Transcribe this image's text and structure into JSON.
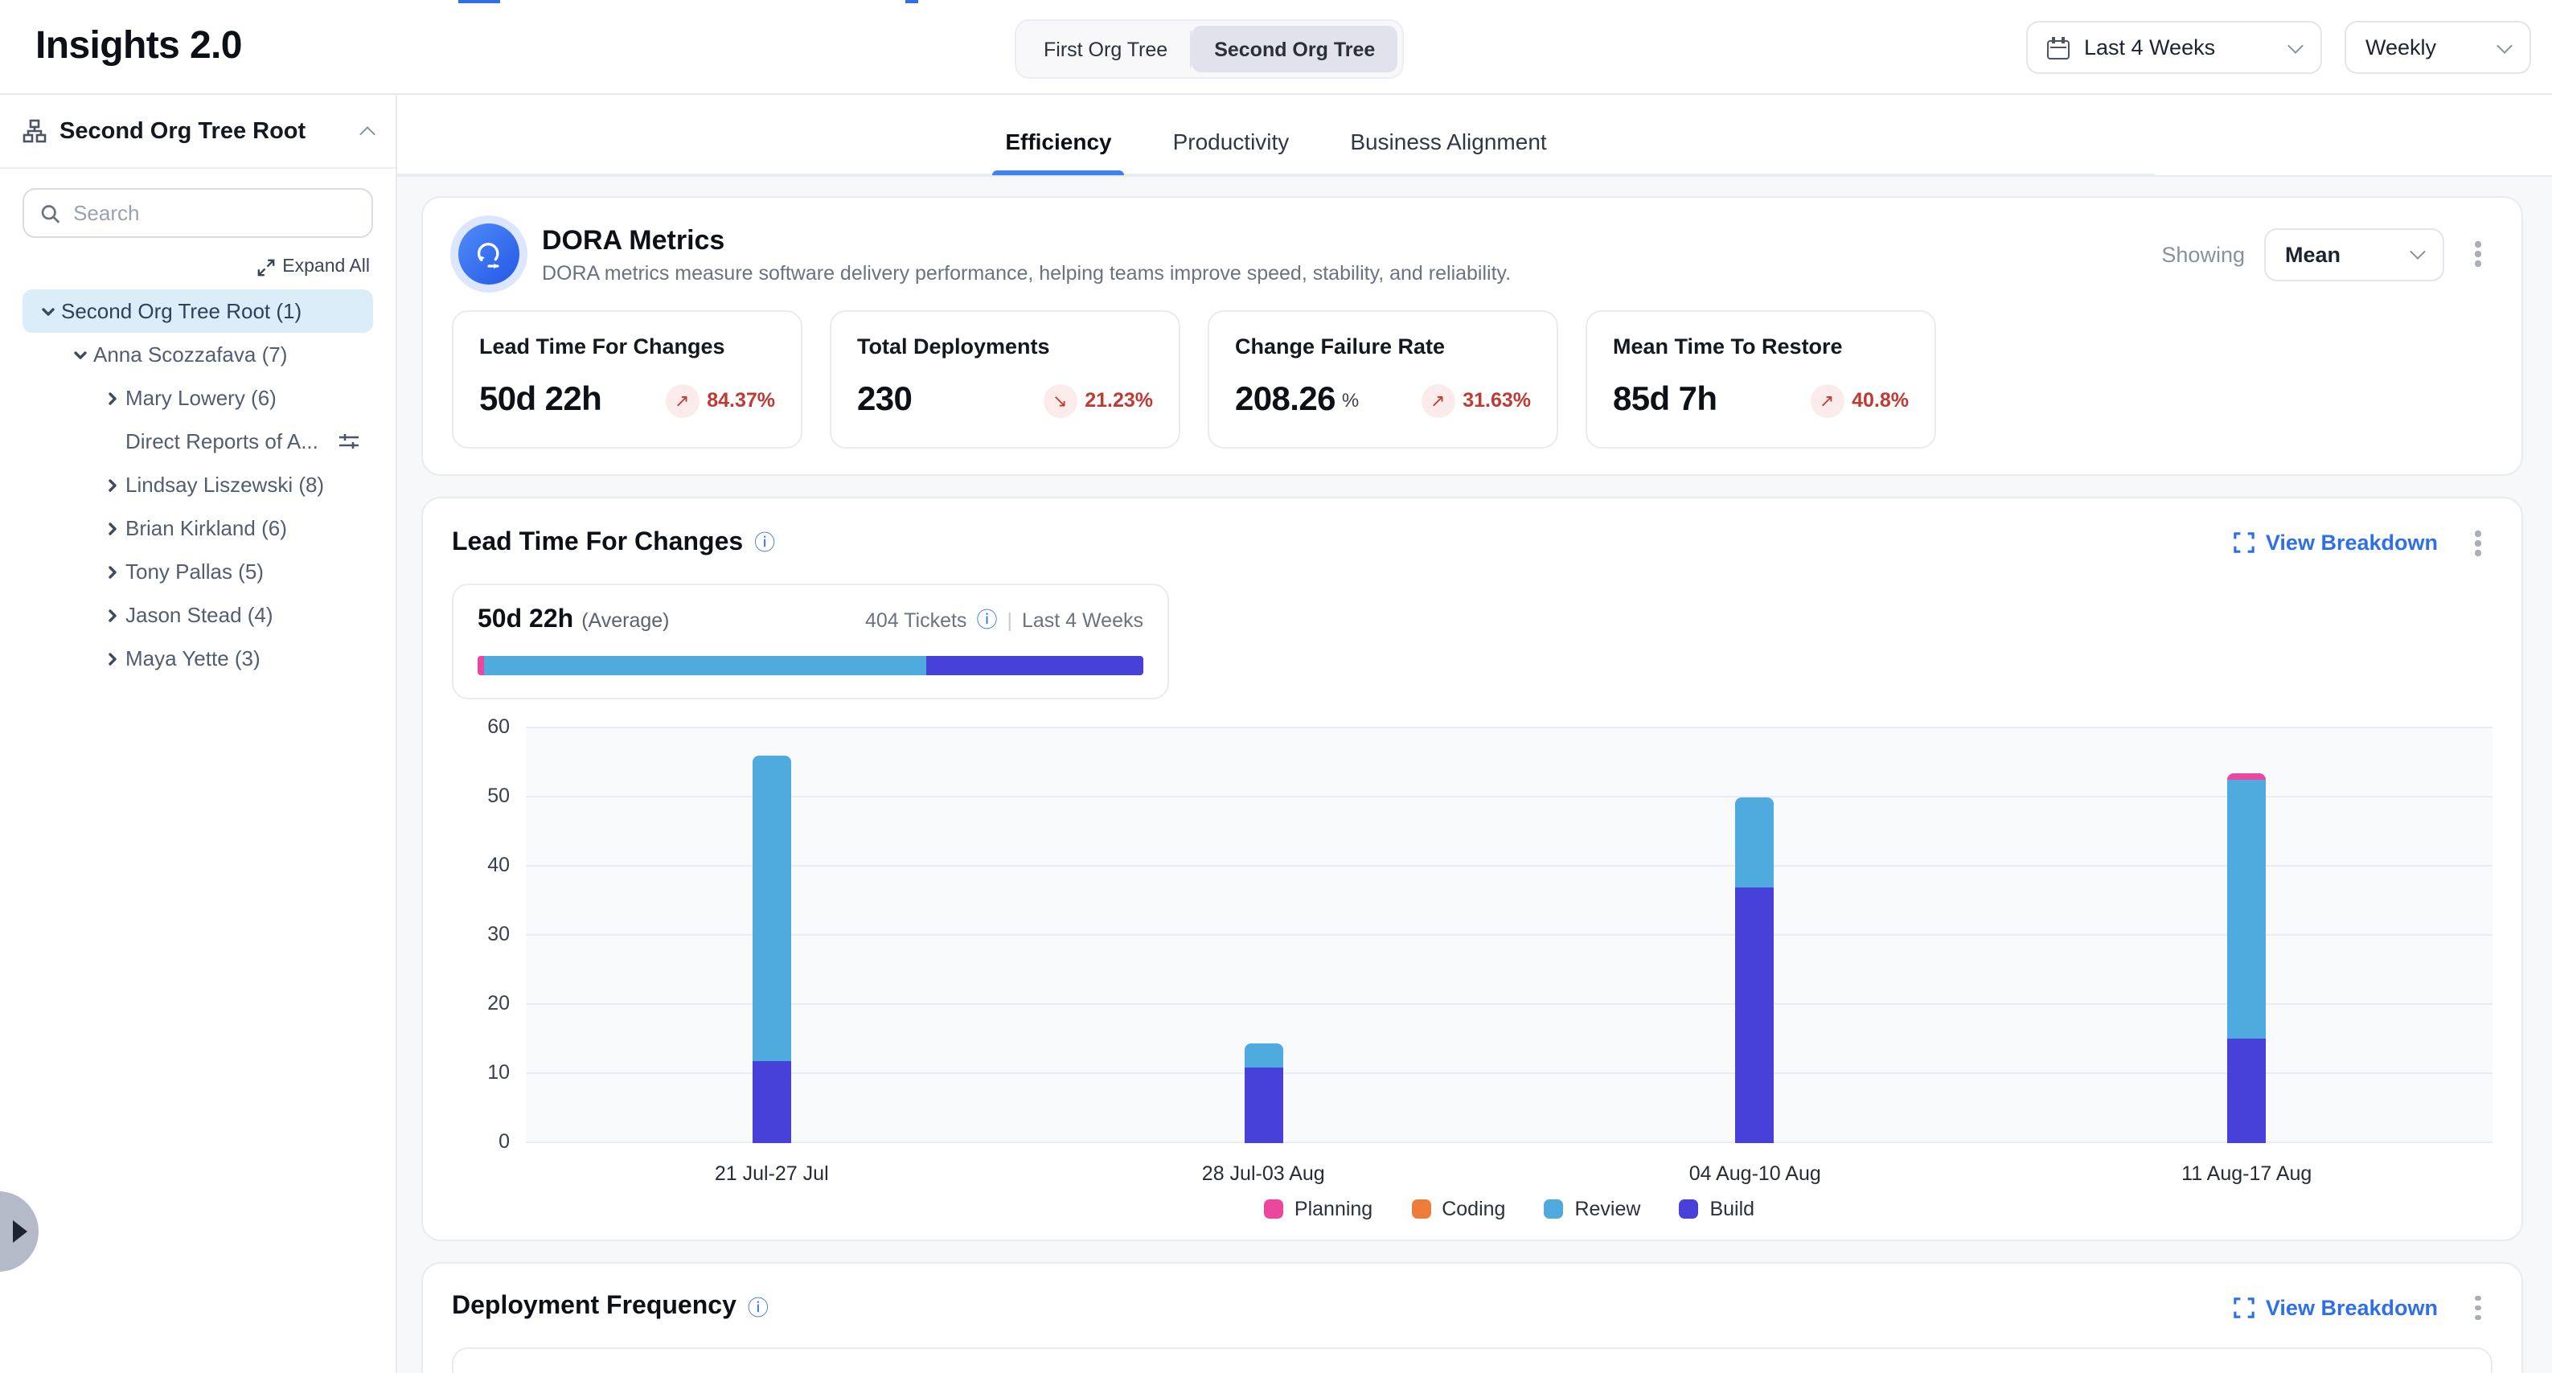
{
  "header": {
    "title": "Insights 2.0",
    "org_toggle": {
      "options": [
        "First Org Tree",
        "Second Org Tree"
      ],
      "selected": "Second Org Tree"
    },
    "date_range": "Last 4 Weeks",
    "granularity": "Weekly"
  },
  "sidebar": {
    "root_title": "Second Org Tree Root",
    "search_placeholder": "Search",
    "expand_all_label": "Expand All",
    "tree": [
      {
        "label": "Second Org Tree Root (1)",
        "level": 0,
        "chevron": "down",
        "selected": true
      },
      {
        "label": "Anna Scozzafava (7)",
        "level": 1,
        "chevron": "down",
        "selected": false
      },
      {
        "label": "Mary Lowery (6)",
        "level": 2,
        "chevron": "right",
        "selected": false
      },
      {
        "label": "Direct Reports of A...",
        "level": 2,
        "chevron": "none",
        "selected": false,
        "trailing_icon": "filter-icon"
      },
      {
        "label": "Lindsay Liszewski (8)",
        "level": 2,
        "chevron": "right",
        "selected": false
      },
      {
        "label": "Brian Kirkland (6)",
        "level": 2,
        "chevron": "right",
        "selected": false
      },
      {
        "label": "Tony Pallas (5)",
        "level": 2,
        "chevron": "right",
        "selected": false
      },
      {
        "label": "Jason Stead (4)",
        "level": 2,
        "chevron": "right",
        "selected": false
      },
      {
        "label": "Maya Yette (3)",
        "level": 2,
        "chevron": "right",
        "selected": false
      }
    ]
  },
  "tabs": {
    "items": [
      "Efficiency",
      "Productivity",
      "Business Alignment"
    ],
    "active": "Efficiency"
  },
  "dora": {
    "title": "DORA Metrics",
    "description": "DORA metrics measure software delivery performance, helping teams improve speed, stability, and reliability.",
    "showing_label": "Showing",
    "showing_value": "Mean",
    "cards": [
      {
        "title": "Lead Time For Changes",
        "value": "50d 22h",
        "unit": "",
        "delta": "84.37%",
        "direction": "up"
      },
      {
        "title": "Total Deployments",
        "value": "230",
        "unit": "",
        "delta": "21.23%",
        "direction": "down"
      },
      {
        "title": "Change Failure Rate",
        "value": "208.26",
        "unit": "%",
        "delta": "31.63%",
        "direction": "up"
      },
      {
        "title": "Mean Time To Restore",
        "value": "85d 7h",
        "unit": "",
        "delta": "40.8%",
        "direction": "up"
      }
    ],
    "delta_color": "#c03a33"
  },
  "lead_time": {
    "section_title": "Lead Time For Changes",
    "view_breakdown_label": "View Breakdown",
    "average_value": "50d 22h",
    "average_note": "(Average)",
    "tickets_label": "404 Tickets",
    "separator": "|",
    "period_label": "Last 4 Weeks",
    "summary_bar_segments": [
      {
        "name": "Planning",
        "color": "#e9489e",
        "percent": 0.9
      },
      {
        "name": "Review",
        "color": "#4faadd",
        "percent": 66.6
      },
      {
        "name": "Build",
        "color": "#4741d9",
        "percent": 32.5
      }
    ]
  },
  "chart_data": {
    "type": "bar",
    "stacked": true,
    "title": "Lead Time For Changes weekly breakdown",
    "categories": [
      "21 Jul-27 Jul",
      "28 Jul-03 Aug",
      "04 Aug-10 Aug",
      "11 Aug-17 Aug"
    ],
    "series": [
      {
        "name": "Planning",
        "color": "#e9489e",
        "values": [
          0,
          0,
          0,
          1.0
        ]
      },
      {
        "name": "Coding",
        "color": "#ed7d3a",
        "values": [
          0,
          0,
          0,
          0
        ]
      },
      {
        "name": "Review",
        "color": "#4faadd",
        "values": [
          44.3,
          3.4,
          12.9,
          37.4
        ]
      },
      {
        "name": "Build",
        "color": "#4741d9",
        "values": [
          11.7,
          10.8,
          36.9,
          15.0
        ]
      }
    ],
    "stack_order_bottom_to_top": [
      "Build",
      "Review",
      "Coding",
      "Planning"
    ],
    "ylim": [
      0,
      60
    ],
    "yticks": [
      0,
      10,
      20,
      30,
      40,
      50,
      60
    ],
    "grid": true,
    "legend_position": "bottom"
  },
  "deployment": {
    "section_title": "Deployment Frequency",
    "view_breakdown_label": "View Breakdown"
  }
}
